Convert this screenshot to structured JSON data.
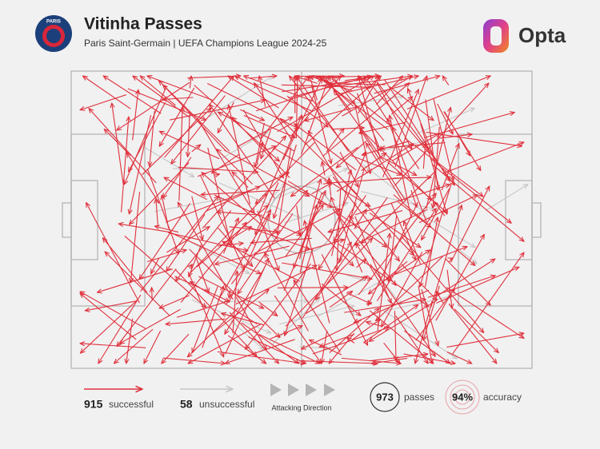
{
  "header": {
    "title": "Vitinha Passes",
    "subtitle": "Paris Saint-Germain | UEFA Champions League 2024-25",
    "logo_text": "PARIS",
    "brand": "Opta"
  },
  "legend": {
    "successful": {
      "value": 915,
      "label": "successful"
    },
    "unsuccessful": {
      "value": 58,
      "label": "unsuccessful"
    },
    "direction": "Attacking Direction"
  },
  "stats": {
    "passes": {
      "value": 973,
      "label": "passes"
    },
    "accuracy": {
      "value": "94%",
      "label": "accuracy"
    }
  }
}
